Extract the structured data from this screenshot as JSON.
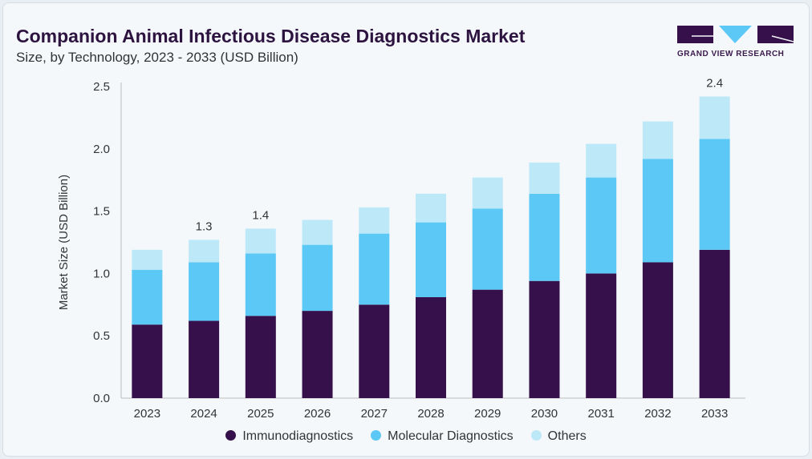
{
  "title": "Companion Animal Infectious Disease Diagnostics Market",
  "subtitle": "Size, by Technology, 2023 - 2033 (USD Billion)",
  "logo_text": "GRAND VIEW RESEARCH",
  "chart_data": {
    "type": "bar",
    "stacked": true,
    "categories": [
      "2023",
      "2024",
      "2025",
      "2026",
      "2027",
      "2028",
      "2029",
      "2030",
      "2031",
      "2032",
      "2033"
    ],
    "series": [
      {
        "name": "Immunodiagnostics",
        "color": "#35104a",
        "values": [
          0.59,
          0.62,
          0.66,
          0.7,
          0.75,
          0.81,
          0.87,
          0.94,
          1.0,
          1.09,
          1.19
        ]
      },
      {
        "name": "Molecular Diagnostics",
        "color": "#5bc8f5",
        "values": [
          0.44,
          0.47,
          0.5,
          0.53,
          0.57,
          0.6,
          0.65,
          0.7,
          0.77,
          0.83,
          0.89
        ]
      },
      {
        "name": "Others",
        "color": "#bde8f8",
        "values": [
          0.16,
          0.18,
          0.2,
          0.2,
          0.21,
          0.23,
          0.25,
          0.25,
          0.27,
          0.3,
          0.34
        ]
      }
    ],
    "total_labels": {
      "2024": "1.3",
      "2025": "1.4",
      "2033": "2.4"
    },
    "ylabel": "Market Size (USD Billion)",
    "yticks": [
      "0.0",
      "0.5",
      "1.0",
      "1.5",
      "2.0",
      "2.5"
    ],
    "ylim": [
      0,
      2.5
    ]
  }
}
